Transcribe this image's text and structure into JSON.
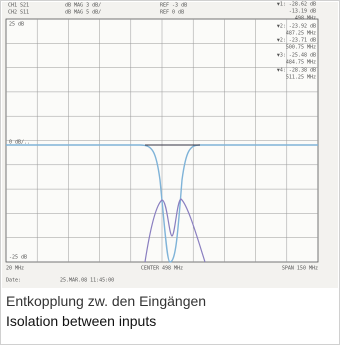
{
  "screen": {
    "header": [
      {
        "channel": "CH1 S21",
        "format": "dB MAG 3 dB/",
        "ref": "REF -3 dB"
      },
      {
        "channel": "CH2 S11",
        "format": "dB MAG 5 dB/",
        "ref": "REF 0 dB"
      }
    ],
    "markers": [
      "▼1: -28.62 dB",
      "-13.19 dB",
      "498 MHz",
      "▼2: -23.92 dB",
      "487.25 MHz",
      "▼2: -23.71 dB",
      "500.75 MHz",
      "▼3: -25.48 dB",
      "484.75 MHz",
      "▼4: -28.38 dB",
      "511.25 MHz"
    ],
    "scale_top": "25 dB",
    "scale_mid": "0 dB/..",
    "scale_bottom": "-25 dB",
    "start": "20 MHz",
    "center": "CENTER 498 MHz",
    "span": "SPAN 150 MHz",
    "date_label": "Date:",
    "date": "25.MAR.08  11:45:00"
  },
  "caption": {
    "de": "Entkopplung zw. den Eingängen",
    "en": "Isolation between inputs"
  }
}
